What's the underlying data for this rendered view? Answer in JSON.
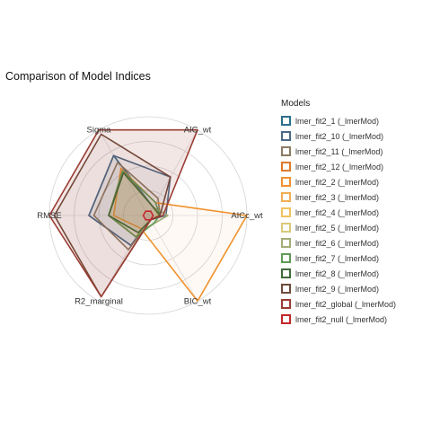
{
  "chart_data": {
    "type": "radar",
    "title": "Comparison of Model Indices",
    "axes": [
      "AIC_wt",
      "AICc_wt",
      "BIC_wt",
      "R2_marginal",
      "RMSE",
      "Sigma"
    ],
    "scale": [
      0,
      1
    ],
    "grid": true,
    "legend_title": "Models",
    "legend_position": "right",
    "series": [
      {
        "name": "lmer_fit2_1 (_lmerMod)",
        "color": "#2b6f8c",
        "fill": false,
        "values": [
          0.1,
          0.12,
          0.05,
          0.35,
          0.6,
          0.7
        ]
      },
      {
        "name": "lmer_fit2_10 (_lmerMod)",
        "color": "#4a6a88",
        "fill": false,
        "values": [
          0.45,
          0.18,
          0.05,
          0.35,
          0.6,
          0.7
        ]
      },
      {
        "name": "lmer_fit2_11 (_lmerMod)",
        "color": "#8c7b63",
        "fill": false,
        "values": [
          0.2,
          0.12,
          0.05,
          0.4,
          0.55,
          0.62
        ]
      },
      {
        "name": "lmer_fit2_12 (_lmerMod)",
        "color": "#e0782a",
        "fill": false,
        "values": [
          0.1,
          0.12,
          0.05,
          0.25,
          0.4,
          0.52
        ]
      },
      {
        "name": "lmer_fit2_2 (_lmerMod)",
        "color": "#f0922f",
        "fill": false,
        "values": [
          0.15,
          1.0,
          1.0,
          0.15,
          0.35,
          0.55
        ]
      },
      {
        "name": "lmer_fit2_3 (_lmerMod)",
        "color": "#f2ae55",
        "fill": false,
        "values": [
          0.1,
          0.12,
          0.05,
          0.25,
          0.4,
          0.52
        ]
      },
      {
        "name": "lmer_fit2_4 (_lmerMod)",
        "color": "#f0c15f",
        "fill": false,
        "values": [
          0.1,
          0.1,
          0.05,
          0.2,
          0.4,
          0.5
        ]
      },
      {
        "name": "lmer_fit2_5 (_lmerMod)",
        "color": "#d9c97a",
        "fill": false,
        "values": [
          0.1,
          0.1,
          0.05,
          0.2,
          0.4,
          0.5
        ]
      },
      {
        "name": "lmer_fit2_6 (_lmerMod)",
        "color": "#a3ac77",
        "fill": false,
        "values": [
          0.1,
          0.2,
          0.1,
          0.2,
          0.4,
          0.5
        ]
      },
      {
        "name": "lmer_fit2_7 (_lmerMod)",
        "color": "#5f9a56",
        "fill": false,
        "values": [
          0.15,
          0.12,
          0.1,
          0.25,
          0.4,
          0.52
        ]
      },
      {
        "name": "lmer_fit2_8 (_lmerMod)",
        "color": "#3d6b39",
        "fill": false,
        "values": [
          0.1,
          0.12,
          0.05,
          0.2,
          0.4,
          0.5
        ]
      },
      {
        "name": "lmer_fit2_9 (_lmerMod)",
        "color": "#6e4a3a",
        "fill": false,
        "values": [
          0.45,
          0.12,
          0.05,
          0.95,
          0.95,
          0.95
        ]
      },
      {
        "name": "lmer_fit2_global (_lmerMod)",
        "color": "#9a3d33",
        "fill": true,
        "values": [
          1.0,
          0.15,
          0.05,
          0.95,
          1.0,
          1.0
        ]
      },
      {
        "name": "lmer_fit2_null (_lmerMod)",
        "color": "#c1272d",
        "fill": false,
        "values": [
          0.05,
          0.05,
          0.05,
          0.05,
          0.05,
          0.05
        ]
      }
    ]
  }
}
